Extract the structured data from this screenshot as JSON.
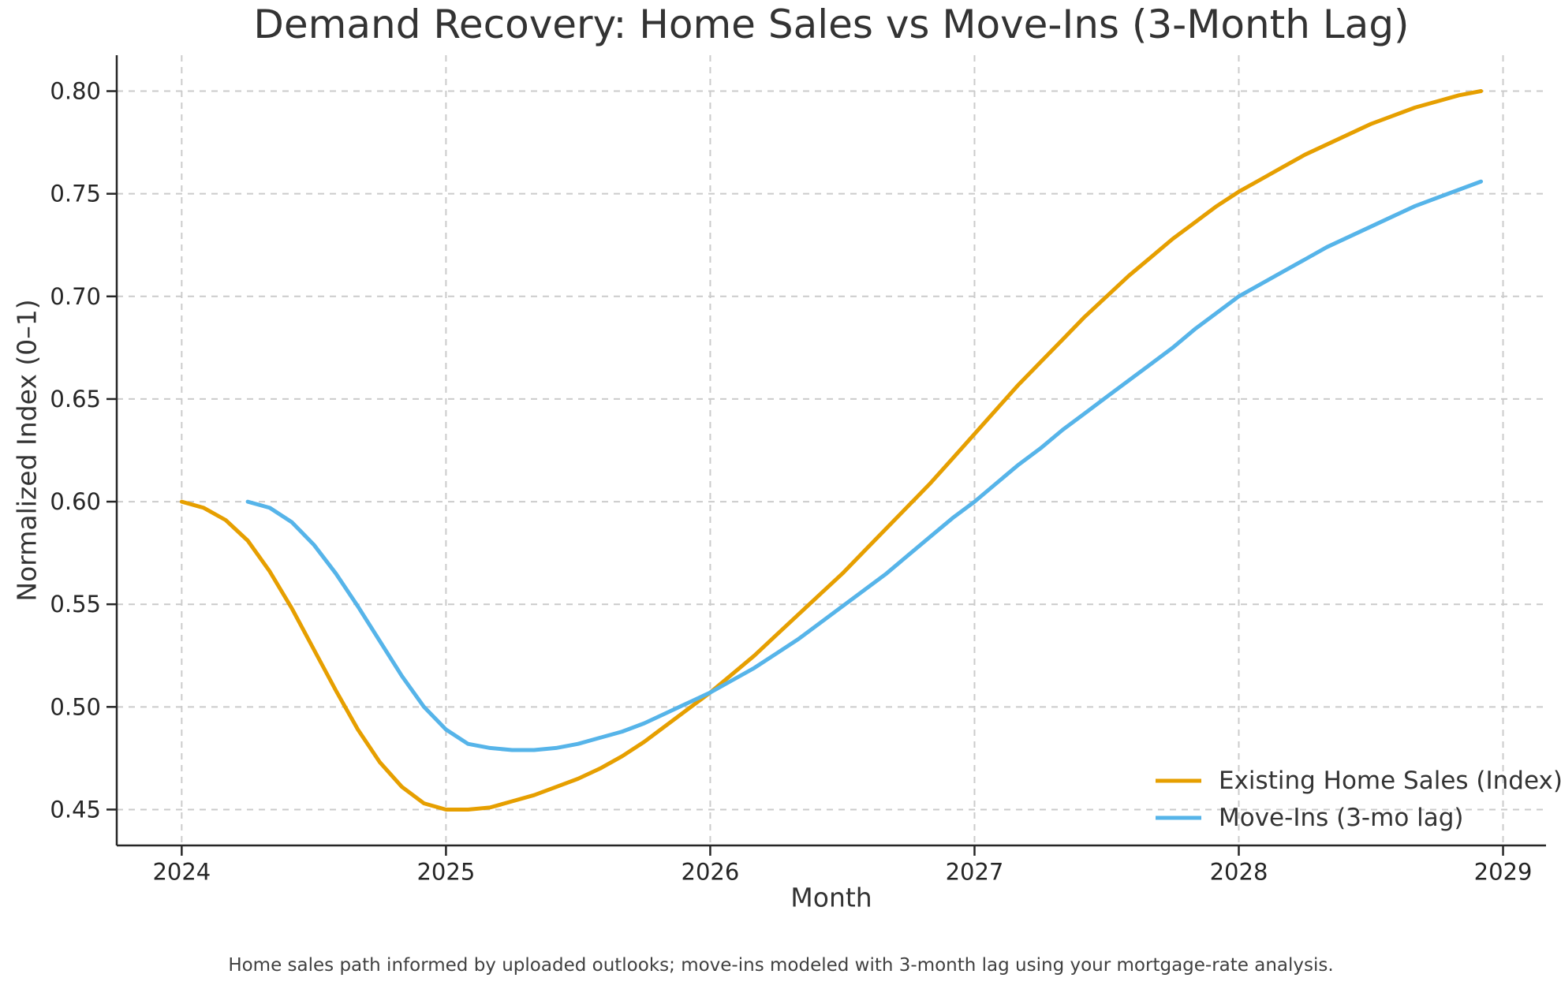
{
  "figure": {
    "caption": "Home sales path informed by uploaded outlooks; move-ins modeled with 3-month lag using your mortgage-rate analysis."
  },
  "chart_data": {
    "type": "line",
    "title": "Demand Recovery: Home Sales vs Move-Ins (3-Month Lag)",
    "xlabel": "Month",
    "ylabel": "Normalized Index (0–1)",
    "grid": true,
    "legend_position": "lower right",
    "x_axis_unit": "monthly dates, Jan 2024 – Dec 2028",
    "x_tick_values": [
      2024,
      2025,
      2026,
      2027,
      2028,
      2029
    ],
    "x_tick_labels": [
      "2024",
      "2025",
      "2026",
      "2027",
      "2028",
      "2029"
    ],
    "y_tick_values": [
      0.45,
      0.5,
      0.55,
      0.6,
      0.65,
      0.7,
      0.75,
      0.8
    ],
    "y_tick_labels": [
      "0.45",
      "0.50",
      "0.55",
      "0.60",
      "0.65",
      "0.70",
      "0.75",
      "0.80"
    ],
    "x_data_range": [
      2024.0,
      2028.9167
    ],
    "y_data_range": [
      0.45,
      0.8
    ],
    "axes_margin_frac": 0.05,
    "series": [
      {
        "name": "Existing Home Sales (Index)",
        "color": "#E69F00",
        "start_year": 2024,
        "start_month": 1,
        "values": [
          0.6,
          0.597,
          0.591,
          0.581,
          0.566,
          0.548,
          0.528,
          0.508,
          0.489,
          0.473,
          0.461,
          0.453,
          0.45,
          0.45,
          0.451,
          0.454,
          0.457,
          0.461,
          0.465,
          0.47,
          0.476,
          0.483,
          0.491,
          0.499,
          0.507,
          0.516,
          0.525,
          0.535,
          0.545,
          0.555,
          0.565,
          0.576,
          0.587,
          0.598,
          0.609,
          0.621,
          0.633,
          0.645,
          0.657,
          0.668,
          0.679,
          0.69,
          0.7,
          0.71,
          0.719,
          0.728,
          0.736,
          0.744,
          0.751,
          0.757,
          0.763,
          0.769,
          0.774,
          0.779,
          0.784,
          0.788,
          0.792,
          0.795,
          0.798,
          0.8
        ]
      },
      {
        "name": "Move-Ins (3-mo lag)",
        "color": "#56B4E9",
        "start_year": 2024,
        "start_month": 4,
        "values": [
          0.6,
          0.597,
          0.59,
          0.579,
          0.565,
          0.549,
          0.532,
          0.515,
          0.5,
          0.489,
          0.482,
          0.48,
          0.479,
          0.479,
          0.48,
          0.482,
          0.485,
          0.488,
          0.492,
          0.497,
          0.502,
          0.507,
          0.513,
          0.519,
          0.526,
          0.533,
          0.541,
          0.549,
          0.557,
          0.565,
          0.574,
          0.583,
          0.592,
          0.6,
          0.609,
          0.618,
          0.626,
          0.635,
          0.643,
          0.651,
          0.659,
          0.667,
          0.675,
          0.684,
          0.692,
          0.7,
          0.706,
          0.712,
          0.718,
          0.724,
          0.729,
          0.734,
          0.739,
          0.744,
          0.748,
          0.752,
          0.756
        ]
      }
    ]
  }
}
